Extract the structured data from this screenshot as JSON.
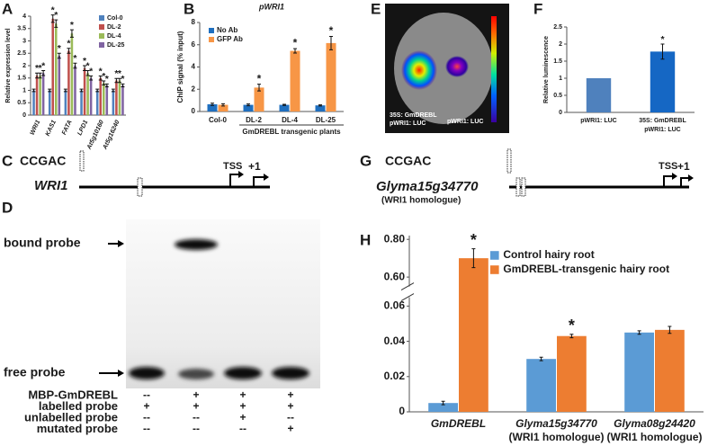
{
  "panel_labels": [
    "A",
    "B",
    "C",
    "D",
    "E",
    "F",
    "G",
    "H"
  ],
  "chart_data": [
    {
      "type": "bar",
      "ylabel": "Relative expression level",
      "categories": [
        "WRI1",
        "KAS1",
        "FATA",
        "LPD1",
        "At5g10160",
        "At5g16240"
      ],
      "series": [
        {
          "name": "Col-0",
          "color": "#4f81bd",
          "values": [
            1,
            1,
            1,
            1,
            1,
            1
          ],
          "errors": [
            0.05,
            0.05,
            0.05,
            0.05,
            0.05,
            0.05
          ]
        },
        {
          "name": "DL-2",
          "color": "#c0504d",
          "values": [
            1.6,
            3.9,
            2.6,
            1.9,
            1.5,
            1.4
          ],
          "errors": [
            0.1,
            0.15,
            0.1,
            0.1,
            0.08,
            0.08
          ],
          "annotations": [
            "*",
            "*",
            "*",
            "*",
            "*",
            "*"
          ]
        },
        {
          "name": "DL-4",
          "color": "#9bbb59",
          "values": [
            1.6,
            3.7,
            3.3,
            1.7,
            1.3,
            1.4
          ],
          "errors": [
            0.1,
            0.15,
            0.15,
            0.1,
            0.08,
            0.08
          ],
          "annotations": [
            "*",
            "*",
            "*",
            "*",
            "*",
            "*"
          ]
        },
        {
          "name": "DL-25",
          "color": "#8064a2",
          "values": [
            1.7,
            2.4,
            2.0,
            1.5,
            1.2,
            1.2
          ],
          "errors": [
            0.1,
            0.1,
            0.1,
            0.08,
            0.06,
            0.06
          ],
          "annotations": [
            "*",
            "*",
            "*",
            "*",
            "*",
            "*"
          ]
        }
      ],
      "ylim": [
        0,
        4
      ],
      "yticks": [
        0,
        0.5,
        1,
        1.5,
        2,
        2.5,
        3,
        3.5,
        4
      ]
    },
    {
      "type": "bar",
      "title": "pWRI1",
      "ylabel": "ChIP signal (% input)",
      "xlabel": "GmDREBL transgenic plants",
      "categories": [
        "Col-0",
        "DL-2",
        "DL-4",
        "DL-25"
      ],
      "series": [
        {
          "name": "No Ab",
          "color": "#1f6fbf",
          "values": [
            0.65,
            0.6,
            0.6,
            0.55
          ],
          "errors": [
            0.1,
            0.08,
            0.05,
            0.05
          ]
        },
        {
          "name": "GFP Ab",
          "color": "#f79646",
          "values": [
            0.6,
            2.15,
            5.45,
            6.15
          ],
          "errors": [
            0.1,
            0.3,
            0.2,
            0.6
          ],
          "annotations": [
            null,
            "*",
            "*",
            "*"
          ]
        }
      ],
      "ylim": [
        0,
        8
      ],
      "yticks": [
        0,
        2,
        4,
        6,
        8
      ]
    },
    {
      "type": "bar",
      "ylabel": "Relative luminescence",
      "categories": [
        "pWRI1: LUC",
        [
          "35S: GmDREBL",
          "pWRI1: LUC"
        ]
      ],
      "series": [
        {
          "colors": [
            "#4f81bd",
            "#1567c4"
          ],
          "values": [
            1,
            1.78
          ],
          "errors": [
            0,
            0.22
          ],
          "annotations": [
            null,
            "*"
          ]
        }
      ],
      "ylim": [
        0,
        2.5
      ],
      "yticks": [
        0,
        0.5,
        1,
        1.5,
        2,
        2.5
      ]
    },
    {
      "type": "bar",
      "categories": [
        "GmDREBL",
        [
          "Glyma15g34770",
          "(WRI1 homologue)"
        ],
        [
          "Glyma08g24420",
          "(WRI1 homologue)"
        ]
      ],
      "series": [
        {
          "name": "Control hairy root",
          "color": "#5b9bd5",
          "values": [
            0.005,
            0.03,
            0.045
          ],
          "errors": [
            0.001,
            0.001,
            0.001
          ]
        },
        {
          "name": "GmDREBL-transgenic hairy root",
          "color": "#ed7d31",
          "values": [
            0.7,
            0.043,
            0.0465
          ],
          "errors": [
            0.05,
            0.001,
            0.002
          ],
          "annotations": [
            "*",
            "*",
            null
          ]
        }
      ],
      "ylim": [
        0,
        0.82
      ],
      "axis_break": [
        0.065,
        0.55
      ],
      "yticks": [
        0,
        0.02,
        0.04,
        0.06,
        {
          "value": 0.6,
          "label": "0.60"
        },
        {
          "value": 0.8,
          "label": "0.80"
        }
      ]
    }
  ],
  "promoter_diagrams": [
    {
      "motif": "CCGAC",
      "gene": "WRI1",
      "tss": "TSS",
      "start": "+1"
    },
    {
      "motif": "CCGAC",
      "gene": "Glyma15g34770",
      "note": "(WRI1 homologue)",
      "tss": "TSS",
      "start": "+1"
    }
  ],
  "emsa": {
    "bands": [
      "bound probe",
      "free probe"
    ],
    "rows": [
      {
        "label": "MBP-GmDREBL",
        "signs": [
          "--",
          "+",
          "+",
          "+"
        ]
      },
      {
        "label": "labelled probe",
        "signs": [
          "+",
          "+",
          "+",
          "+"
        ]
      },
      {
        "label": "unlabelled probe",
        "signs": [
          "--",
          "--",
          "+",
          "--"
        ]
      },
      {
        "label": "mutated probe",
        "signs": [
          "--",
          "--",
          "--",
          "+"
        ]
      }
    ]
  },
  "imaging": {
    "labels": [
      "35S: GmDREBL",
      "pWRI1: LUC",
      "pWRI1: LUC"
    ]
  }
}
